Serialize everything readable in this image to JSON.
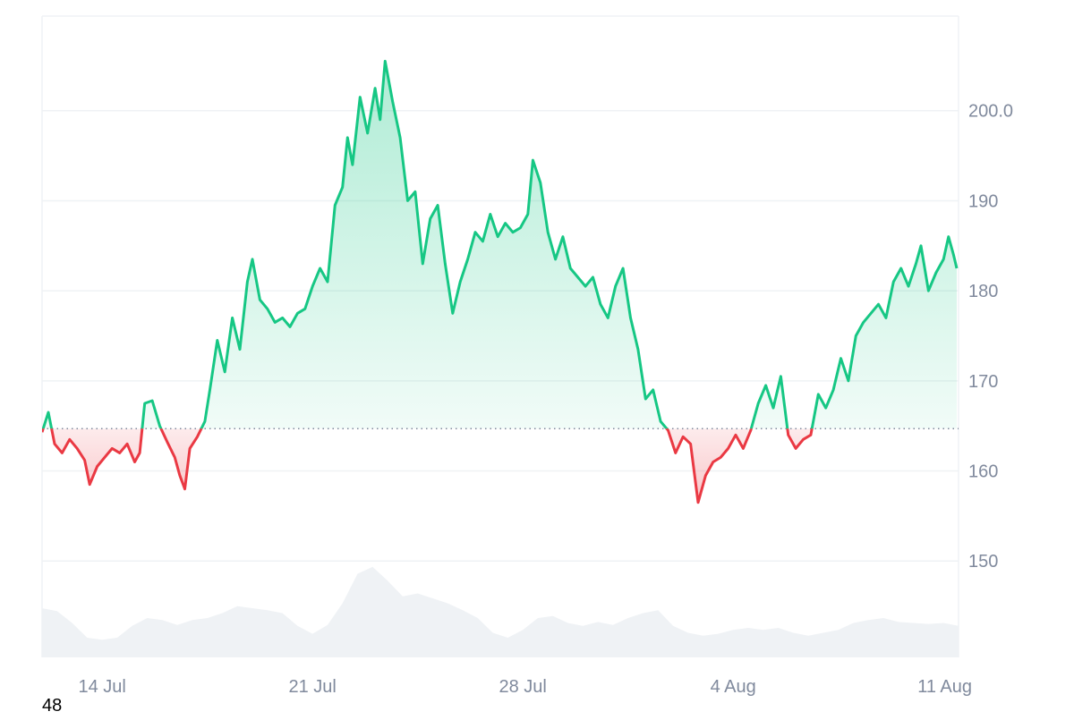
{
  "chart_data": {
    "type": "area",
    "baseline": 164.7,
    "ylim": [
      139.3,
      210.5
    ],
    "y_ticks": [
      150,
      160,
      170,
      180,
      190,
      200.0
    ],
    "y_tick_labels": [
      "150",
      "160",
      "170",
      "180",
      "190",
      "200.0"
    ],
    "x_start": "2025-07-12",
    "x_end": "2025-08-11",
    "x_ticks": [
      "2025-07-14",
      "2025-07-21",
      "2025-07-28",
      "2025-08-04",
      "2025-08-11"
    ],
    "x_tick_labels": [
      "14 Jul",
      "21 Jul",
      "28 Jul",
      "4 Aug",
      "11 Aug"
    ],
    "grid": true,
    "colors": {
      "up": "#16c784",
      "down": "#ea3943",
      "volume": "#eff2f5",
      "grid": "#eff2f5",
      "baseline": "#808a9d"
    },
    "series": [
      {
        "points": [
          [
            "2025-07-12 00:00",
            164.3
          ],
          [
            "2025-07-12 05:00",
            166.5
          ],
          [
            "2025-07-12 10:00",
            163.0
          ],
          [
            "2025-07-12 16:00",
            162.0
          ],
          [
            "2025-07-12 22:00",
            163.5
          ],
          [
            "2025-07-13 04:00",
            162.5
          ],
          [
            "2025-07-13 10:00",
            161.2
          ],
          [
            "2025-07-13 14:00",
            158.5
          ],
          [
            "2025-07-13 20:00",
            160.5
          ],
          [
            "2025-07-14 02:00",
            161.5
          ],
          [
            "2025-07-14 08:00",
            162.5
          ],
          [
            "2025-07-14 14:00",
            162.0
          ],
          [
            "2025-07-14 20:00",
            163.0
          ],
          [
            "2025-07-15 02:00",
            161.0
          ],
          [
            "2025-07-15 06:00",
            162.0
          ],
          [
            "2025-07-15 10:00",
            167.5
          ],
          [
            "2025-07-15 16:00",
            167.8
          ],
          [
            "2025-07-15 22:00",
            165.0
          ],
          [
            "2025-07-16 04:00",
            163.2
          ],
          [
            "2025-07-16 10:00",
            161.5
          ],
          [
            "2025-07-16 14:00",
            159.5
          ],
          [
            "2025-07-16 18:00",
            158.0
          ],
          [
            "2025-07-16 22:00",
            162.5
          ],
          [
            "2025-07-17 04:00",
            163.8
          ],
          [
            "2025-07-17 10:00",
            165.5
          ],
          [
            "2025-07-17 14:00",
            169.0
          ],
          [
            "2025-07-17 20:00",
            174.5
          ],
          [
            "2025-07-18 02:00",
            171.0
          ],
          [
            "2025-07-18 08:00",
            177.0
          ],
          [
            "2025-07-18 14:00",
            173.5
          ],
          [
            "2025-07-18 20:00",
            181.0
          ],
          [
            "2025-07-19 00:00",
            183.5
          ],
          [
            "2025-07-19 06:00",
            179.0
          ],
          [
            "2025-07-19 12:00",
            178.0
          ],
          [
            "2025-07-19 18:00",
            176.5
          ],
          [
            "2025-07-20 00:00",
            177.0
          ],
          [
            "2025-07-20 06:00",
            176.0
          ],
          [
            "2025-07-20 12:00",
            177.5
          ],
          [
            "2025-07-20 18:00",
            178.0
          ],
          [
            "2025-07-21 00:00",
            180.5
          ],
          [
            "2025-07-21 06:00",
            182.5
          ],
          [
            "2025-07-21 12:00",
            181.0
          ],
          [
            "2025-07-21 18:00",
            189.5
          ],
          [
            "2025-07-22 00:00",
            191.5
          ],
          [
            "2025-07-22 04:00",
            197.0
          ],
          [
            "2025-07-22 08:00",
            194.0
          ],
          [
            "2025-07-22 14:00",
            201.5
          ],
          [
            "2025-07-22 20:00",
            197.5
          ],
          [
            "2025-07-23 02:00",
            202.5
          ],
          [
            "2025-07-23 06:00",
            199.0
          ],
          [
            "2025-07-23 10:00",
            205.5
          ],
          [
            "2025-07-23 16:00",
            201.0
          ],
          [
            "2025-07-23 22:00",
            197.0
          ],
          [
            "2025-07-24 04:00",
            190.0
          ],
          [
            "2025-07-24 10:00",
            191.0
          ],
          [
            "2025-07-24 16:00",
            183.0
          ],
          [
            "2025-07-24 22:00",
            188.0
          ],
          [
            "2025-07-25 04:00",
            189.5
          ],
          [
            "2025-07-25 10:00",
            183.0
          ],
          [
            "2025-07-25 16:00",
            177.5
          ],
          [
            "2025-07-25 22:00",
            181.0
          ],
          [
            "2025-07-26 04:00",
            183.5
          ],
          [
            "2025-07-26 10:00",
            186.5
          ],
          [
            "2025-07-26 16:00",
            185.5
          ],
          [
            "2025-07-26 22:00",
            188.5
          ],
          [
            "2025-07-27 04:00",
            186.0
          ],
          [
            "2025-07-27 10:00",
            187.5
          ],
          [
            "2025-07-27 16:00",
            186.5
          ],
          [
            "2025-07-27 22:00",
            187.0
          ],
          [
            "2025-07-28 04:00",
            188.5
          ],
          [
            "2025-07-28 08:00",
            194.5
          ],
          [
            "2025-07-28 14:00",
            192.0
          ],
          [
            "2025-07-28 20:00",
            186.5
          ],
          [
            "2025-07-29 02:00",
            183.5
          ],
          [
            "2025-07-29 08:00",
            186.0
          ],
          [
            "2025-07-29 14:00",
            182.5
          ],
          [
            "2025-07-29 20:00",
            181.5
          ],
          [
            "2025-07-30 02:00",
            180.5
          ],
          [
            "2025-07-30 08:00",
            181.5
          ],
          [
            "2025-07-30 14:00",
            178.5
          ],
          [
            "2025-07-30 20:00",
            177.0
          ],
          [
            "2025-07-31 02:00",
            180.5
          ],
          [
            "2025-07-31 08:00",
            182.5
          ],
          [
            "2025-07-31 14:00",
            177.0
          ],
          [
            "2025-07-31 20:00",
            173.5
          ],
          [
            "2025-08-01 02:00",
            168.0
          ],
          [
            "2025-08-01 08:00",
            169.0
          ],
          [
            "2025-08-01 14:00",
            165.5
          ],
          [
            "2025-08-01 20:00",
            164.5
          ],
          [
            "2025-08-02 02:00",
            162.0
          ],
          [
            "2025-08-02 08:00",
            163.8
          ],
          [
            "2025-08-02 14:00",
            163.0
          ],
          [
            "2025-08-02 20:00",
            156.5
          ],
          [
            "2025-08-03 02:00",
            159.5
          ],
          [
            "2025-08-03 08:00",
            161.0
          ],
          [
            "2025-08-03 14:00",
            161.5
          ],
          [
            "2025-08-03 20:00",
            162.5
          ],
          [
            "2025-08-04 02:00",
            164.0
          ],
          [
            "2025-08-04 08:00",
            162.5
          ],
          [
            "2025-08-04 14:00",
            164.5
          ],
          [
            "2025-08-04 20:00",
            167.5
          ],
          [
            "2025-08-05 02:00",
            169.5
          ],
          [
            "2025-08-05 08:00",
            167.0
          ],
          [
            "2025-08-05 14:00",
            170.5
          ],
          [
            "2025-08-05 20:00",
            164.0
          ],
          [
            "2025-08-06 02:00",
            162.5
          ],
          [
            "2025-08-06 08:00",
            163.5
          ],
          [
            "2025-08-06 14:00",
            164.0
          ],
          [
            "2025-08-06 20:00",
            168.5
          ],
          [
            "2025-08-07 02:00",
            167.0
          ],
          [
            "2025-08-07 08:00",
            169.0
          ],
          [
            "2025-08-07 14:00",
            172.5
          ],
          [
            "2025-08-07 20:00",
            170.0
          ],
          [
            "2025-08-08 02:00",
            175.0
          ],
          [
            "2025-08-08 08:00",
            176.5
          ],
          [
            "2025-08-08 14:00",
            177.5
          ],
          [
            "2025-08-08 20:00",
            178.5
          ],
          [
            "2025-08-09 02:00",
            177.0
          ],
          [
            "2025-08-09 08:00",
            181.0
          ],
          [
            "2025-08-09 14:00",
            182.5
          ],
          [
            "2025-08-09 20:00",
            180.5
          ],
          [
            "2025-08-10 02:00",
            183.0
          ],
          [
            "2025-08-10 06:00",
            185.0
          ],
          [
            "2025-08-10 12:00",
            180.0
          ],
          [
            "2025-08-10 18:00",
            182.0
          ],
          [
            "2025-08-11 00:00",
            183.5
          ],
          [
            "2025-08-11 04:00",
            186.0
          ],
          [
            "2025-08-11 08:00",
            184.0
          ],
          [
            "2025-08-11 12:00",
            182.5
          ]
        ]
      }
    ],
    "volume": [
      [
        "2025-07-12 00:00",
        0.5
      ],
      [
        "2025-07-12 12:00",
        0.47
      ],
      [
        "2025-07-13 00:00",
        0.35
      ],
      [
        "2025-07-13 12:00",
        0.2
      ],
      [
        "2025-07-14 00:00",
        0.18
      ],
      [
        "2025-07-14 12:00",
        0.2
      ],
      [
        "2025-07-15 00:00",
        0.32
      ],
      [
        "2025-07-15 12:00",
        0.4
      ],
      [
        "2025-07-16 00:00",
        0.38
      ],
      [
        "2025-07-16 12:00",
        0.33
      ],
      [
        "2025-07-17 00:00",
        0.38
      ],
      [
        "2025-07-17 12:00",
        0.4
      ],
      [
        "2025-07-18 00:00",
        0.45
      ],
      [
        "2025-07-18 12:00",
        0.52
      ],
      [
        "2025-07-19 00:00",
        0.5
      ],
      [
        "2025-07-19 12:00",
        0.48
      ],
      [
        "2025-07-20 00:00",
        0.45
      ],
      [
        "2025-07-20 12:00",
        0.32
      ],
      [
        "2025-07-21 00:00",
        0.24
      ],
      [
        "2025-07-21 12:00",
        0.33
      ],
      [
        "2025-07-22 00:00",
        0.55
      ],
      [
        "2025-07-22 12:00",
        0.85
      ],
      [
        "2025-07-23 00:00",
        0.92
      ],
      [
        "2025-07-23 12:00",
        0.78
      ],
      [
        "2025-07-24 00:00",
        0.62
      ],
      [
        "2025-07-24 12:00",
        0.65
      ],
      [
        "2025-07-25 00:00",
        0.6
      ],
      [
        "2025-07-25 12:00",
        0.55
      ],
      [
        "2025-07-26 00:00",
        0.48
      ],
      [
        "2025-07-26 12:00",
        0.4
      ],
      [
        "2025-07-27 00:00",
        0.25
      ],
      [
        "2025-07-27 12:00",
        0.2
      ],
      [
        "2025-07-28 00:00",
        0.28
      ],
      [
        "2025-07-28 12:00",
        0.4
      ],
      [
        "2025-07-29 00:00",
        0.42
      ],
      [
        "2025-07-29 12:00",
        0.35
      ],
      [
        "2025-07-30 00:00",
        0.32
      ],
      [
        "2025-07-30 12:00",
        0.36
      ],
      [
        "2025-07-31 00:00",
        0.33
      ],
      [
        "2025-07-31 12:00",
        0.4
      ],
      [
        "2025-08-01 00:00",
        0.45
      ],
      [
        "2025-08-01 12:00",
        0.48
      ],
      [
        "2025-08-02 00:00",
        0.32
      ],
      [
        "2025-08-02 12:00",
        0.25
      ],
      [
        "2025-08-03 00:00",
        0.22
      ],
      [
        "2025-08-03 12:00",
        0.24
      ],
      [
        "2025-08-04 00:00",
        0.28
      ],
      [
        "2025-08-04 12:00",
        0.3
      ],
      [
        "2025-08-05 00:00",
        0.28
      ],
      [
        "2025-08-05 12:00",
        0.3
      ],
      [
        "2025-08-06 00:00",
        0.25
      ],
      [
        "2025-08-06 12:00",
        0.22
      ],
      [
        "2025-08-07 00:00",
        0.25
      ],
      [
        "2025-08-07 12:00",
        0.28
      ],
      [
        "2025-08-08 00:00",
        0.35
      ],
      [
        "2025-08-08 12:00",
        0.38
      ],
      [
        "2025-08-09 00:00",
        0.4
      ],
      [
        "2025-08-09 12:00",
        0.36
      ],
      [
        "2025-08-10 00:00",
        0.35
      ],
      [
        "2025-08-10 12:00",
        0.34
      ],
      [
        "2025-08-11 00:00",
        0.35
      ],
      [
        "2025-08-11 12:00",
        0.32
      ]
    ]
  },
  "footer": {
    "number": "48"
  }
}
